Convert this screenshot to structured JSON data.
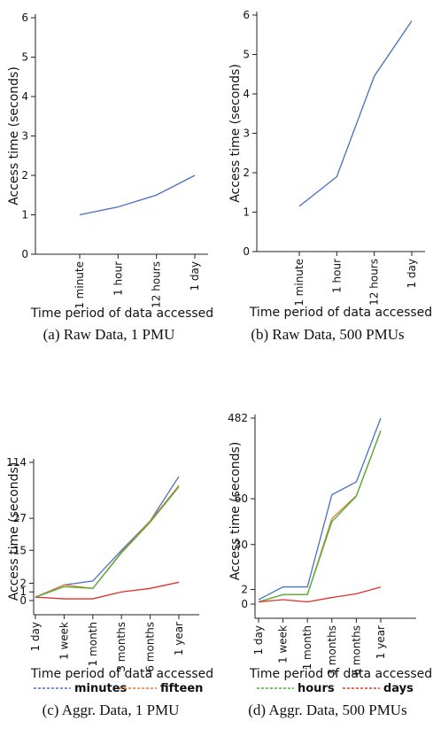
{
  "chart_data": [
    {
      "type": "line",
      "caption": "(a) Raw Data, 1 PMU",
      "x_label": "Time period of data accessed",
      "y_label": "Access time (seconds)",
      "categories": [
        "1 minute",
        "1 hour",
        "12 hours",
        "1 day"
      ],
      "series": [
        {
          "color": "#4a6fc2",
          "values": [
            1.0,
            1.2,
            1.5,
            2.0
          ]
        }
      ],
      "ylim": [
        0,
        6
      ],
      "yticks": [
        0,
        1,
        2,
        3,
        4,
        5,
        6
      ],
      "yscale": "linear"
    },
    {
      "type": "line",
      "caption": "(b) Raw Data, 500 PMUs",
      "x_label": "Time period of data accessed",
      "y_label": "Access time (seconds)",
      "categories": [
        "1 minute",
        "1 hour",
        "12 hours",
        "1 day"
      ],
      "series": [
        {
          "color": "#4a6fc2",
          "values": [
            1.15,
            1.9,
            4.45,
            5.85
          ]
        }
      ],
      "ylim": [
        0,
        6
      ],
      "yticks": [
        0,
        1,
        2,
        3,
        4,
        5,
        6
      ],
      "yscale": "linear"
    },
    {
      "type": "line",
      "caption": "(c) Aggr. Data, 1 PMU",
      "x_label": "Time period of data accessed",
      "y_label": "Access time (seconds)",
      "categories": [
        "1 day",
        "1 week",
        "1 month",
        "3 months",
        "6 months",
        "1 year"
      ],
      "series": [
        {
          "name": "minutes",
          "color": "#4a6fc2",
          "values": [
            0.4,
            1.8,
            2.9,
            15,
            26,
            92
          ]
        },
        {
          "name": "fifteen",
          "color": "#e87a2e",
          "values": [
            0.4,
            1.8,
            1.4,
            14.3,
            26,
            78
          ]
        },
        {
          "color": "#4caf3a",
          "values": [
            0.4,
            1.6,
            1.4,
            14,
            25.5,
            76
          ]
        },
        {
          "color": "#e0302a",
          "values": [
            0.4,
            0.2,
            0.2,
            1,
            1.4,
            2.4
          ]
        }
      ],
      "ylim": [
        0,
        114
      ],
      "yticks": [
        0,
        1,
        2,
        15,
        27,
        114
      ],
      "yscale": "piecewise"
    },
    {
      "type": "line",
      "caption": "(d) Aggr. Data, 500 PMUs",
      "x_label": "Time period of data accessed",
      "y_label": "Access time (seconds)",
      "categories": [
        "1 day",
        "1 week",
        "1 month",
        "3 months",
        "6 months",
        "1 year"
      ],
      "series": [
        {
          "color": "#4a6fc2",
          "values": [
            0.6,
            3.6,
            3.6,
            81,
            148,
            482
          ]
        },
        {
          "color": "#e87a2e",
          "values": [
            0.3,
            1.3,
            1.3,
            47,
            76,
            416
          ]
        },
        {
          "name": "hours",
          "color": "#4caf3a",
          "values": [
            0.3,
            1.3,
            1.3,
            45,
            73,
            416
          ]
        },
        {
          "name": "days",
          "color": "#e0302a",
          "values": [
            0.3,
            0.6,
            0.3,
            0.9,
            1.4,
            3.5
          ]
        }
      ],
      "ylim": [
        0,
        482
      ],
      "yticks": [
        0,
        2,
        30,
        60,
        482
      ],
      "yscale": "piecewise"
    }
  ]
}
